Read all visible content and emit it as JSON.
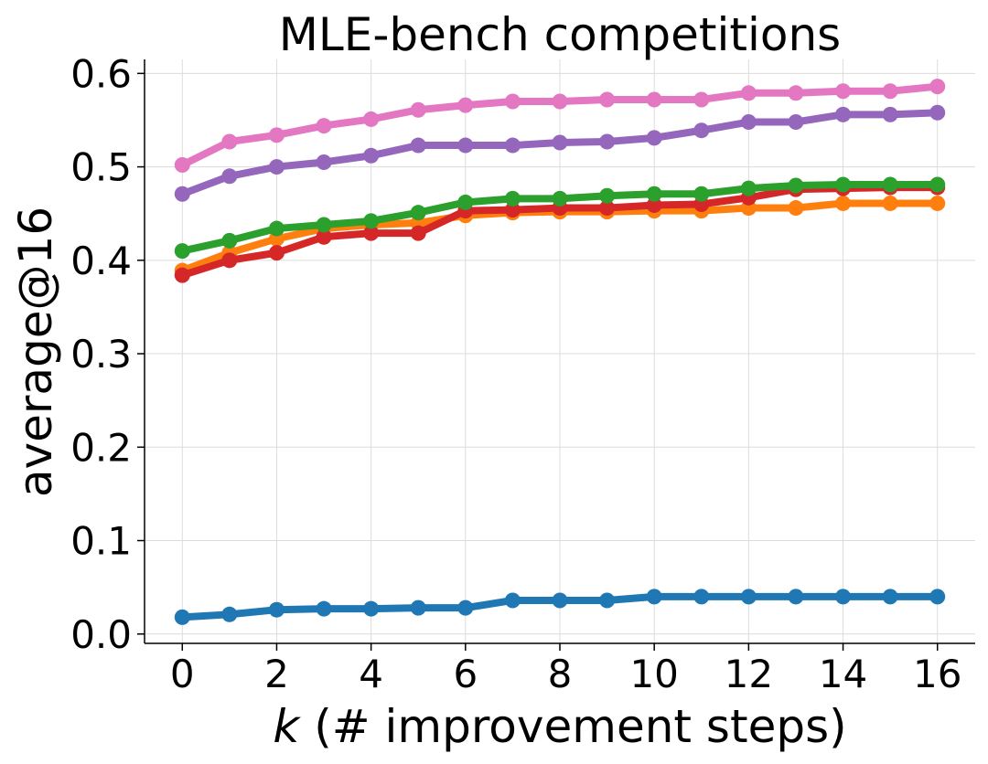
{
  "chart_data": {
    "type": "line",
    "title": "MLE-bench competitions",
    "xlabel_var": "k",
    "xlabel_rest": " (# improvement steps)",
    "ylabel": "average@16",
    "xlim": [
      -0.8,
      16.8
    ],
    "ylim": [
      -0.01,
      0.615
    ],
    "xticks": [
      0,
      2,
      4,
      6,
      8,
      10,
      12,
      14,
      16
    ],
    "xtick_labels": [
      "0",
      "2",
      "4",
      "6",
      "8",
      "10",
      "12",
      "14",
      "16"
    ],
    "yticks": [
      0.0,
      0.1,
      0.2,
      0.3,
      0.4,
      0.5,
      0.6
    ],
    "ytick_labels": [
      "0.0",
      "0.1",
      "0.2",
      "0.3",
      "0.4",
      "0.5",
      "0.6"
    ],
    "grid": true,
    "x": [
      0,
      1,
      2,
      3,
      4,
      5,
      6,
      7,
      8,
      9,
      10,
      11,
      12,
      13,
      14,
      15,
      16
    ],
    "series": [
      {
        "name": "blue",
        "color": "#1f77b4",
        "values": [
          0.018,
          0.021,
          0.026,
          0.027,
          0.027,
          0.028,
          0.028,
          0.036,
          0.036,
          0.036,
          0.04,
          0.04,
          0.04,
          0.04,
          0.04,
          0.04,
          0.04
        ]
      },
      {
        "name": "orange",
        "color": "#ff7f0e",
        "values": [
          0.389,
          0.408,
          0.423,
          0.434,
          0.438,
          0.44,
          0.448,
          0.451,
          0.452,
          0.452,
          0.453,
          0.453,
          0.456,
          0.456,
          0.461,
          0.461,
          0.461
        ]
      },
      {
        "name": "red",
        "color": "#d62728",
        "values": [
          0.384,
          0.4,
          0.408,
          0.425,
          0.429,
          0.429,
          0.453,
          0.454,
          0.456,
          0.456,
          0.459,
          0.46,
          0.467,
          0.476,
          0.477,
          0.478,
          0.478
        ]
      },
      {
        "name": "green",
        "color": "#2ca02c",
        "values": [
          0.41,
          0.421,
          0.434,
          0.438,
          0.442,
          0.451,
          0.462,
          0.466,
          0.466,
          0.469,
          0.471,
          0.471,
          0.477,
          0.48,
          0.481,
          0.481,
          0.481
        ]
      },
      {
        "name": "purple",
        "color": "#9467bd",
        "values": [
          0.471,
          0.49,
          0.5,
          0.505,
          0.512,
          0.523,
          0.523,
          0.523,
          0.526,
          0.527,
          0.531,
          0.539,
          0.548,
          0.548,
          0.556,
          0.556,
          0.558
        ]
      },
      {
        "name": "pink",
        "color": "#e377c2",
        "values": [
          0.502,
          0.527,
          0.534,
          0.544,
          0.551,
          0.561,
          0.566,
          0.57,
          0.57,
          0.572,
          0.572,
          0.572,
          0.579,
          0.579,
          0.581,
          0.581,
          0.586
        ]
      }
    ]
  }
}
